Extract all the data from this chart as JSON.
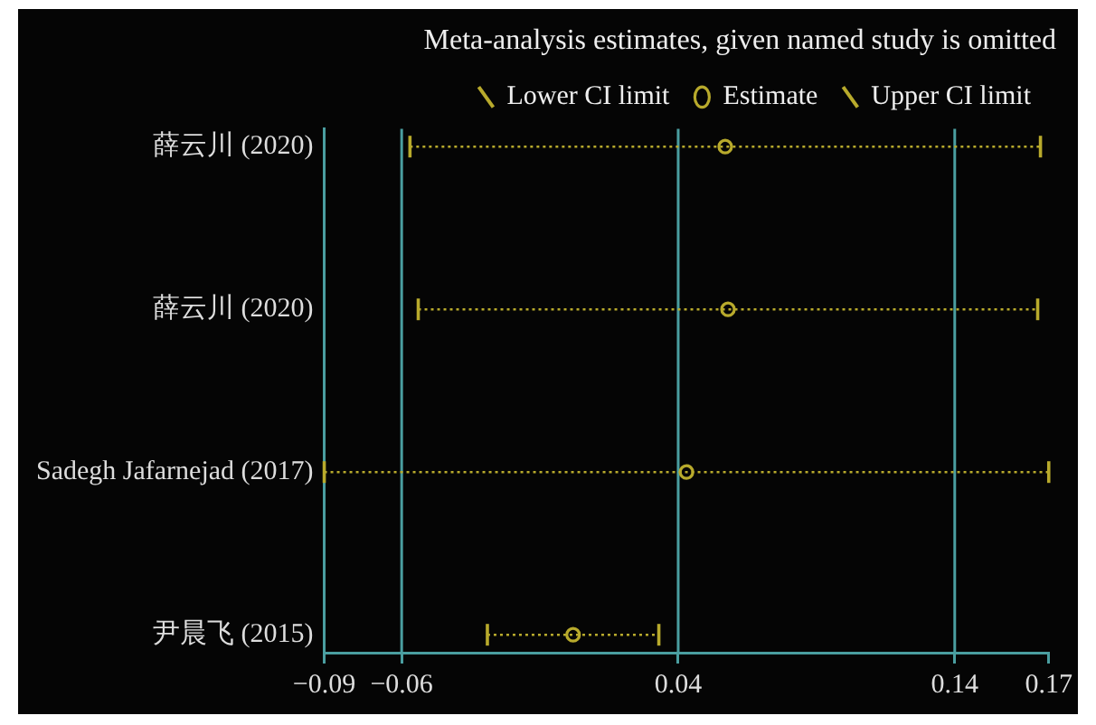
{
  "chart_data": {
    "type": "scatter",
    "orientation": "horizontal",
    "title": "Meta-analysis estimates, given named study is omitted",
    "categories": [
      "薛云川 (2020)",
      "薛云川 (2020)",
      "Sadegh Jafarnejad (2017)",
      "尹晨飞 (2015)"
    ],
    "series": [
      {
        "name": "Estimate",
        "color": "#b8aa2c",
        "marker": "circle",
        "values": [
          0.057,
          0.058,
          0.043,
          0.002
        ],
        "errors": [
          0.114,
          0.112,
          0.131,
          0.031
        ]
      }
    ],
    "annotations": [
      "Lower CI limit",
      "Upper CI limit"
    ],
    "xlim": [
      -0.088,
      0.174
    ],
    "xticks": [
      {
        "value": -0.088,
        "label": "−0.09"
      },
      {
        "value": -0.06,
        "label": "−0.06"
      },
      0.04,
      0.14,
      {
        "value": 0.174,
        "label": "0.17"
      }
    ],
    "ref_lines": [
      {
        "axis": "x",
        "value": -0.06,
        "color": "#4a9ea0"
      },
      {
        "axis": "x",
        "value": 0.04,
        "color": "#4a9ea0"
      },
      {
        "axis": "x",
        "value": 0.14,
        "color": "#4a9ea0"
      }
    ],
    "legend": "top"
  }
}
